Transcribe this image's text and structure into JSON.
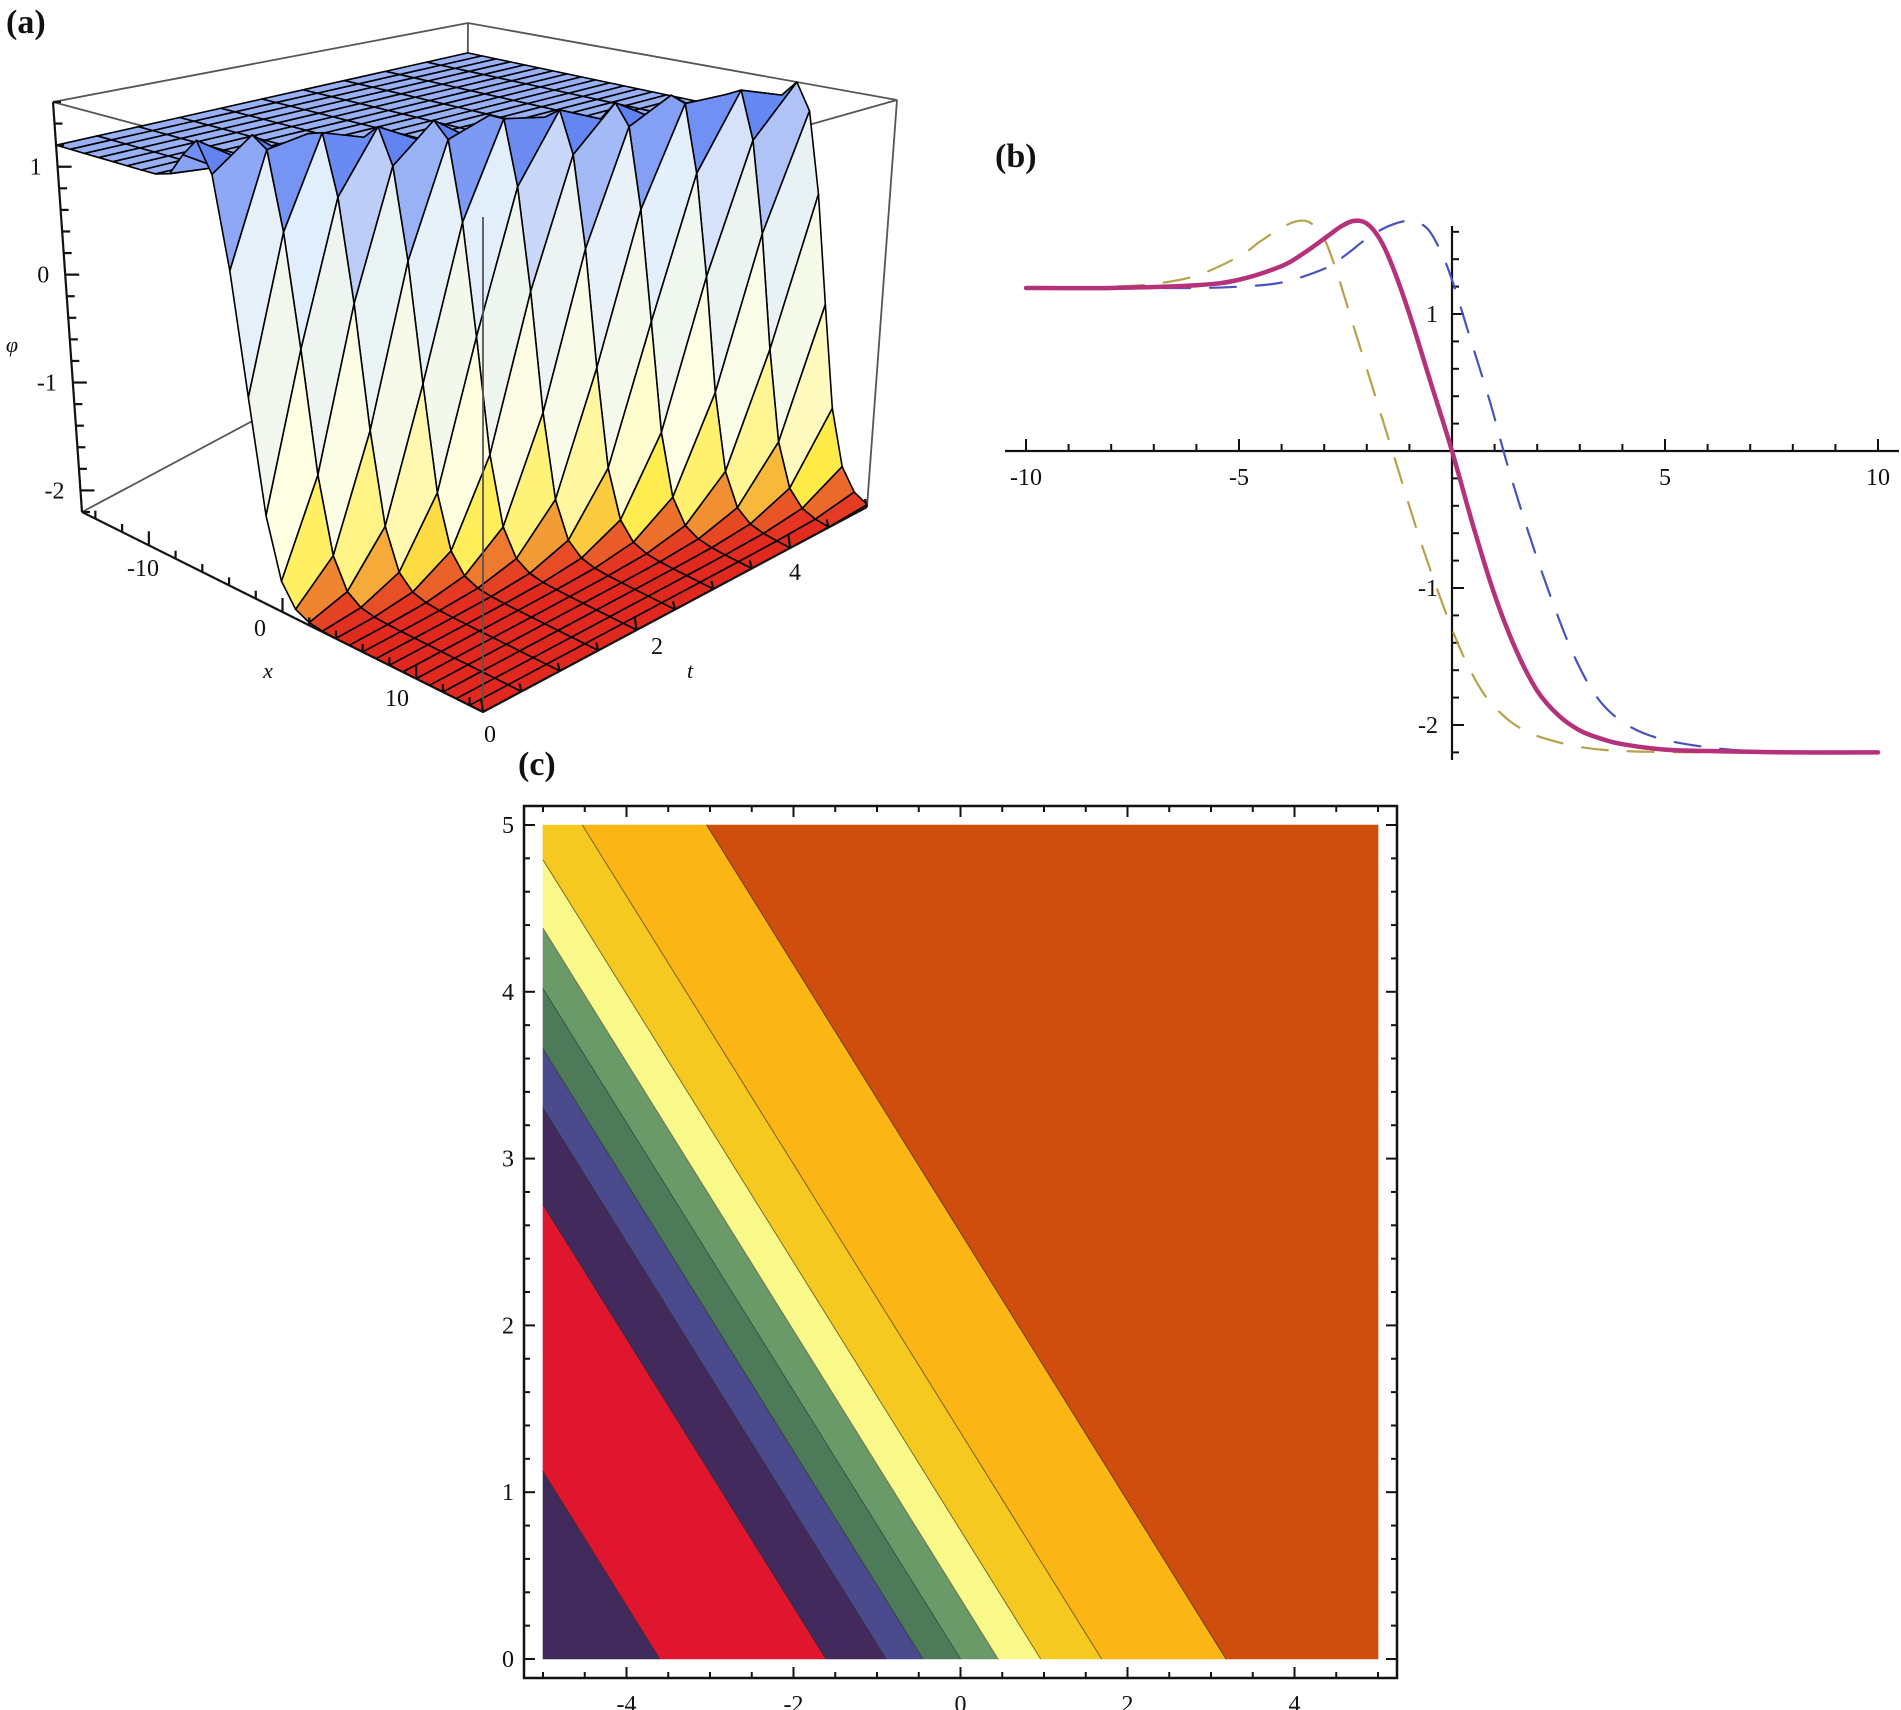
{
  "figure": {
    "panels": [
      {
        "id": "a",
        "label": "(a)"
      },
      {
        "id": "b",
        "label": "(b)"
      },
      {
        "id": "c",
        "label": "(c)"
      }
    ]
  },
  "chart_data": [
    {
      "panel": "(a)",
      "type": "surface3d",
      "title": "",
      "xlabel": "x",
      "ylabel": "t",
      "zlabel": "φ",
      "x_range": [
        -15,
        15
      ],
      "t_range": [
        0,
        5
      ],
      "z_range": [
        -2.2,
        1.6
      ],
      "x_ticks": [
        "-10",
        "0",
        "10"
      ],
      "t_ticks": [
        "0",
        "2",
        "4"
      ],
      "z_ticks": [
        "1",
        "0",
        "-1",
        "-2"
      ],
      "upper_plateau": 1.2,
      "lower_plateau": -2.2,
      "peak": 1.68,
      "description": "Kink-type wave: upper plateau (blue) at phi≈1.2 for x<<0 dropping to lower plateau (yellow–red) at phi≈-2.2; front travels toward positive x as t increases",
      "colormap": {
        "high": "#3a6cf0",
        "mid": "#ffffff",
        "low_mid": "#fff64a",
        "low": "#e02020"
      },
      "box_color": "#555555",
      "mesh_color": "#000000"
    },
    {
      "panel": "(b)",
      "type": "line",
      "title": "",
      "xlabel": "",
      "ylabel": "",
      "xlim": [
        -10,
        10
      ],
      "ylim": [
        -2.3,
        1.8
      ],
      "x_ticks": [
        "-10",
        "-5",
        "5",
        "10"
      ],
      "y_ticks": [
        "1",
        "-1",
        "-2"
      ],
      "grid": false,
      "legend": null,
      "series": [
        {
          "name": "solid",
          "style": "solid",
          "color": "#b5317a",
          "x": [
            -10,
            -8,
            -6,
            -5,
            -4,
            -3.5,
            -3,
            -2.6,
            -2.3,
            -2,
            -1.7,
            -1.4,
            -1,
            -0.5,
            0,
            0.5,
            1,
            1.5,
            2,
            2.5,
            3,
            3.5,
            4,
            5,
            6,
            8,
            10
          ],
          "y": [
            1.19,
            1.19,
            1.21,
            1.25,
            1.35,
            1.44,
            1.55,
            1.64,
            1.68,
            1.66,
            1.55,
            1.35,
            1.0,
            0.5,
            0.0,
            -0.55,
            -1.05,
            -1.45,
            -1.75,
            -1.93,
            -2.04,
            -2.1,
            -2.14,
            -2.18,
            -2.19,
            -2.2,
            -2.2
          ]
        },
        {
          "name": "dashed-olive",
          "style": "dashed",
          "color": "#b7a24a",
          "x": [
            -10,
            -8,
            -7,
            -6,
            -5,
            -4.5,
            -4,
            -3.6,
            -3.3,
            -3,
            -2.7,
            -2.3,
            -1.8,
            -1.3,
            -0.8,
            -0.3,
            0.2,
            0.7,
            1.2,
            1.7,
            2.2,
            3,
            4,
            6,
            8,
            10
          ],
          "y": [
            1.19,
            1.2,
            1.22,
            1.28,
            1.42,
            1.53,
            1.63,
            1.68,
            1.66,
            1.55,
            1.3,
            0.9,
            0.4,
            -0.1,
            -0.6,
            -1.05,
            -1.45,
            -1.75,
            -1.93,
            -2.04,
            -2.1,
            -2.16,
            -2.19,
            -2.2,
            -2.2,
            -2.2
          ]
        },
        {
          "name": "dashed-blue",
          "style": "dashed",
          "color": "#4a52c0",
          "x": [
            -10,
            -8,
            -6,
            -5,
            -4,
            -3,
            -2.5,
            -2,
            -1.5,
            -1,
            -0.6,
            -0.3,
            0,
            0.4,
            0.9,
            1.3,
            1.8,
            2.3,
            2.8,
            3.3,
            3.8,
            4.5,
            5.5,
            7,
            9,
            10
          ],
          "y": [
            1.19,
            1.19,
            1.19,
            1.2,
            1.23,
            1.33,
            1.43,
            1.55,
            1.64,
            1.68,
            1.63,
            1.48,
            1.25,
            0.85,
            0.35,
            -0.1,
            -0.6,
            -1.05,
            -1.45,
            -1.75,
            -1.93,
            -2.06,
            -2.14,
            -2.19,
            -2.2,
            -2.2
          ]
        }
      ]
    },
    {
      "panel": "(c)",
      "type": "contour",
      "title": "",
      "xlabel": "",
      "ylabel": "",
      "xlim": [
        -5,
        5
      ],
      "ylim": [
        0,
        5
      ],
      "x_ticks": [
        "-4",
        "-2",
        "0",
        "2",
        "4"
      ],
      "y_ticks": [
        "0",
        "1",
        "2",
        "3",
        "4",
        "5"
      ],
      "contour_slope_dx_per_dy": -1.244,
      "boundaries_at_y0": [
        -3.6,
        -1.61,
        -0.89,
        -0.45,
        0.0,
        0.45,
        0.96,
        1.69,
        3.18
      ],
      "band_colors": [
        "#3f2a5b",
        "#e0162f",
        "#432a5d",
        "#4a4a8c",
        "#4d7a59",
        "#699a68",
        "#f9f98a",
        "#f6c921",
        "#fbb514",
        "#cf4e0e"
      ]
    }
  ]
}
